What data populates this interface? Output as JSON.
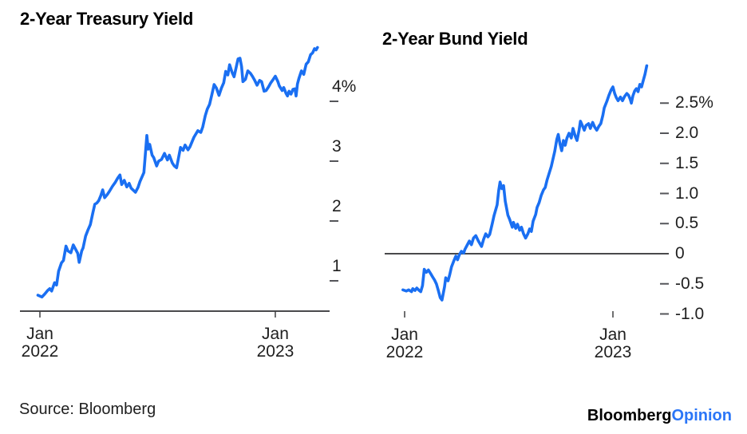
{
  "footer": {
    "source": "Source: Bloomberg",
    "logo_black": "Bloomberg",
    "logo_blue": "Opinion"
  },
  "colors": {
    "line_blue": "#1a6ff2",
    "axis_gray": "#4a4a4c",
    "dash_gray": "#55565a",
    "text_dark": "#1f1f1f",
    "logo_blue": "#2b76f7"
  },
  "chart_data": [
    {
      "type": "line",
      "title": "2-Year Treasury Yield",
      "x_unit": "months since Jan 2022",
      "xlim": [
        -0.2,
        14.3
      ],
      "ylim": [
        0.49,
        5.0
      ],
      "grid": false,
      "legend": null,
      "tick_side": "right",
      "bottom_axis": true,
      "zero_line": false,
      "x_ticks": [
        {
          "t": 0,
          "top": "Jan",
          "bottom": "2022"
        },
        {
          "t": 12,
          "top": "Jan",
          "bottom": "2023"
        }
      ],
      "y_ticks": [
        {
          "v": 1,
          "label": "1"
        },
        {
          "v": 2,
          "label": "2"
        },
        {
          "v": 3,
          "label": "3"
        },
        {
          "v": 4,
          "label": "4%"
        }
      ],
      "series": [
        {
          "name": "US 2-year Treasury yield (%)",
          "color": "#1a6ff2",
          "points": [
            [
              -0.1,
              0.76
            ],
            [
              0.1,
              0.73
            ],
            [
              0.25,
              0.78
            ],
            [
              0.4,
              0.84
            ],
            [
              0.5,
              0.87
            ],
            [
              0.6,
              0.83
            ],
            [
              0.75,
              0.97
            ],
            [
              0.85,
              0.93
            ],
            [
              0.95,
              1.16
            ],
            [
              1.1,
              1.3
            ],
            [
              1.2,
              1.34
            ],
            [
              1.33,
              1.58
            ],
            [
              1.43,
              1.5
            ],
            [
              1.58,
              1.47
            ],
            [
              1.7,
              1.6
            ],
            [
              1.8,
              1.54
            ],
            [
              1.93,
              1.46
            ],
            [
              2.0,
              1.31
            ],
            [
              2.13,
              1.5
            ],
            [
              2.2,
              1.55
            ],
            [
              2.33,
              1.75
            ],
            [
              2.45,
              1.85
            ],
            [
              2.57,
              1.94
            ],
            [
              2.7,
              2.14
            ],
            [
              2.8,
              2.28
            ],
            [
              2.9,
              2.3
            ],
            [
              3.0,
              2.34
            ],
            [
              3.1,
              2.42
            ],
            [
              3.2,
              2.52
            ],
            [
              3.3,
              2.39
            ],
            [
              3.43,
              2.44
            ],
            [
              3.55,
              2.5
            ],
            [
              3.7,
              2.58
            ],
            [
              3.85,
              2.65
            ],
            [
              3.97,
              2.72
            ],
            [
              4.08,
              2.77
            ],
            [
              4.17,
              2.61
            ],
            [
              4.3,
              2.68
            ],
            [
              4.43,
              2.57
            ],
            [
              4.55,
              2.63
            ],
            [
              4.65,
              2.55
            ],
            [
              4.87,
              2.48
            ],
            [
              5.0,
              2.56
            ],
            [
              5.1,
              2.66
            ],
            [
              5.3,
              2.81
            ],
            [
              5.45,
              3.43
            ],
            [
              5.52,
              3.2
            ],
            [
              5.6,
              3.28
            ],
            [
              5.72,
              3.1
            ],
            [
              5.8,
              3.06
            ],
            [
              5.95,
              2.92
            ],
            [
              6.05,
              3.0
            ],
            [
              6.2,
              3.03
            ],
            [
              6.35,
              3.13
            ],
            [
              6.5,
              3.02
            ],
            [
              6.6,
              3.1
            ],
            [
              6.75,
              2.97
            ],
            [
              6.85,
              2.92
            ],
            [
              6.97,
              2.89
            ],
            [
              7.17,
              3.23
            ],
            [
              7.3,
              3.18
            ],
            [
              7.4,
              3.27
            ],
            [
              7.55,
              3.19
            ],
            [
              7.65,
              3.24
            ],
            [
              7.75,
              3.32
            ],
            [
              7.85,
              3.4
            ],
            [
              8.05,
              3.51
            ],
            [
              8.2,
              3.48
            ],
            [
              8.3,
              3.57
            ],
            [
              8.43,
              3.76
            ],
            [
              8.53,
              3.87
            ],
            [
              8.65,
              3.95
            ],
            [
              8.77,
              4.12
            ],
            [
              8.88,
              4.28
            ],
            [
              9.0,
              4.22
            ],
            [
              9.13,
              4.1
            ],
            [
              9.25,
              4.22
            ],
            [
              9.37,
              4.31
            ],
            [
              9.47,
              4.5
            ],
            [
              9.58,
              4.44
            ],
            [
              9.67,
              4.61
            ],
            [
              9.8,
              4.48
            ],
            [
              9.9,
              4.41
            ],
            [
              10.0,
              4.56
            ],
            [
              10.1,
              4.71
            ],
            [
              10.2,
              4.72
            ],
            [
              10.28,
              4.58
            ],
            [
              10.35,
              4.33
            ],
            [
              10.48,
              4.37
            ],
            [
              10.6,
              4.51
            ],
            [
              10.73,
              4.47
            ],
            [
              10.83,
              4.42
            ],
            [
              10.95,
              4.35
            ],
            [
              11.07,
              4.27
            ],
            [
              11.2,
              4.35
            ],
            [
              11.3,
              4.33
            ],
            [
              11.43,
              4.17
            ],
            [
              11.53,
              4.18
            ],
            [
              11.65,
              4.24
            ],
            [
              11.77,
              4.31
            ],
            [
              11.9,
              4.37
            ],
            [
              12.0,
              4.42
            ],
            [
              12.13,
              4.33
            ],
            [
              12.2,
              4.26
            ],
            [
              12.35,
              4.18
            ],
            [
              12.43,
              4.23
            ],
            [
              12.55,
              4.13
            ],
            [
              12.62,
              4.09
            ],
            [
              12.7,
              4.17
            ],
            [
              12.8,
              4.12
            ],
            [
              12.9,
              4.2
            ],
            [
              13.0,
              4.21
            ],
            [
              13.06,
              4.09
            ],
            [
              13.13,
              4.29
            ],
            [
              13.2,
              4.38
            ],
            [
              13.33,
              4.51
            ],
            [
              13.45,
              4.45
            ],
            [
              13.57,
              4.62
            ],
            [
              13.68,
              4.66
            ],
            [
              13.8,
              4.78
            ],
            [
              13.9,
              4.81
            ],
            [
              14.0,
              4.88
            ],
            [
              14.08,
              4.86
            ],
            [
              14.15,
              4.9
            ]
          ]
        }
      ]
    },
    {
      "type": "line",
      "title": "2-Year Bund Yield",
      "x_unit": "months since Jan 2022",
      "xlim": [
        -0.2,
        14.1
      ],
      "ylim": [
        -1.15,
        3.3
      ],
      "grid": false,
      "legend": null,
      "tick_side": "right",
      "bottom_axis": false,
      "zero_line": true,
      "x_ticks": [
        {
          "t": 0,
          "top": "Jan",
          "bottom": "2022"
        },
        {
          "t": 12,
          "top": "Jan",
          "bottom": "2023"
        }
      ],
      "y_ticks": [
        {
          "v": -1.0,
          "label": "-1.0"
        },
        {
          "v": -0.5,
          "label": "-0.5"
        },
        {
          "v": 0,
          "label": "0"
        },
        {
          "v": 0.5,
          "label": "0.5"
        },
        {
          "v": 1.0,
          "label": "1.0"
        },
        {
          "v": 1.5,
          "label": "1.5"
        },
        {
          "v": 2.0,
          "label": "2.0"
        },
        {
          "v": 2.5,
          "label": "2.5%"
        }
      ],
      "series": [
        {
          "name": "German 2-year Bund yield (%)",
          "color": "#1a6ff2",
          "points": [
            [
              -0.1,
              -0.6
            ],
            [
              0.1,
              -0.62
            ],
            [
              0.23,
              -0.6
            ],
            [
              0.4,
              -0.63
            ],
            [
              0.47,
              -0.58
            ],
            [
              0.6,
              -0.61
            ],
            [
              0.7,
              -0.57
            ],
            [
              0.8,
              -0.6
            ],
            [
              0.93,
              -0.63
            ],
            [
              1.03,
              -0.53
            ],
            [
              1.13,
              -0.26
            ],
            [
              1.25,
              -0.31
            ],
            [
              1.37,
              -0.27
            ],
            [
              1.5,
              -0.33
            ],
            [
              1.6,
              -0.38
            ],
            [
              1.73,
              -0.44
            ],
            [
              1.83,
              -0.5
            ],
            [
              1.95,
              -0.62
            ],
            [
              2.05,
              -0.73
            ],
            [
              2.15,
              -0.77
            ],
            [
              2.3,
              -0.55
            ],
            [
              2.37,
              -0.4
            ],
            [
              2.5,
              -0.45
            ],
            [
              2.6,
              -0.35
            ],
            [
              2.7,
              -0.22
            ],
            [
              2.83,
              -0.12
            ],
            [
              2.95,
              -0.04
            ],
            [
              3.05,
              -0.1
            ],
            [
              3.15,
              -0.02
            ],
            [
              3.27,
              0.04
            ],
            [
              3.4,
              0.01
            ],
            [
              3.47,
              0.07
            ],
            [
              3.6,
              0.14
            ],
            [
              3.73,
              0.21
            ],
            [
              3.85,
              0.15
            ],
            [
              3.97,
              0.26
            ],
            [
              4.1,
              0.3
            ],
            [
              4.25,
              0.21
            ],
            [
              4.43,
              0.12
            ],
            [
              4.55,
              0.24
            ],
            [
              4.67,
              0.33
            ],
            [
              4.8,
              0.28
            ],
            [
              4.9,
              0.32
            ],
            [
              5.05,
              0.5
            ],
            [
              5.15,
              0.63
            ],
            [
              5.33,
              0.81
            ],
            [
              5.42,
              1.05
            ],
            [
              5.5,
              1.19
            ],
            [
              5.6,
              1.08
            ],
            [
              5.7,
              1.13
            ],
            [
              5.8,
              0.87
            ],
            [
              5.95,
              0.64
            ],
            [
              6.05,
              0.57
            ],
            [
              6.2,
              0.44
            ],
            [
              6.27,
              0.52
            ],
            [
              6.4,
              0.42
            ],
            [
              6.5,
              0.49
            ],
            [
              6.63,
              0.39
            ],
            [
              6.73,
              0.44
            ],
            [
              6.85,
              0.33
            ],
            [
              6.97,
              0.26
            ],
            [
              7.1,
              0.33
            ],
            [
              7.2,
              0.41
            ],
            [
              7.3,
              0.37
            ],
            [
              7.4,
              0.54
            ],
            [
              7.55,
              0.65
            ],
            [
              7.63,
              0.77
            ],
            [
              7.75,
              0.85
            ],
            [
              7.87,
              0.97
            ],
            [
              8.0,
              1.06
            ],
            [
              8.1,
              1.1
            ],
            [
              8.2,
              1.22
            ],
            [
              8.3,
              1.31
            ],
            [
              8.45,
              1.45
            ],
            [
              8.53,
              1.55
            ],
            [
              8.65,
              1.7
            ],
            [
              8.77,
              1.9
            ],
            [
              8.85,
              1.98
            ],
            [
              8.95,
              1.82
            ],
            [
              9.05,
              1.71
            ],
            [
              9.15,
              1.88
            ],
            [
              9.25,
              1.8
            ],
            [
              9.35,
              1.92
            ],
            [
              9.47,
              2.0
            ],
            [
              9.6,
              1.92
            ],
            [
              9.7,
              2.08
            ],
            [
              9.83,
              1.95
            ],
            [
              9.93,
              1.88
            ],
            [
              10.05,
              2.05
            ],
            [
              10.13,
              2.2
            ],
            [
              10.25,
              2.12
            ],
            [
              10.35,
              2.05
            ],
            [
              10.45,
              2.13
            ],
            [
              10.6,
              2.16
            ],
            [
              10.7,
              2.08
            ],
            [
              10.83,
              2.18
            ],
            [
              10.95,
              2.1
            ],
            [
              11.07,
              2.05
            ],
            [
              11.2,
              2.12
            ],
            [
              11.3,
              2.16
            ],
            [
              11.42,
              2.3
            ],
            [
              11.5,
              2.42
            ],
            [
              11.65,
              2.53
            ],
            [
              11.77,
              2.63
            ],
            [
              11.9,
              2.72
            ],
            [
              12.0,
              2.77
            ],
            [
              12.1,
              2.66
            ],
            [
              12.2,
              2.59
            ],
            [
              12.3,
              2.54
            ],
            [
              12.43,
              2.6
            ],
            [
              12.55,
              2.54
            ],
            [
              12.67,
              2.61
            ],
            [
              12.8,
              2.66
            ],
            [
              12.9,
              2.63
            ],
            [
              13.0,
              2.56
            ],
            [
              13.06,
              2.5
            ],
            [
              13.15,
              2.62
            ],
            [
              13.25,
              2.7
            ],
            [
              13.35,
              2.74
            ],
            [
              13.45,
              2.69
            ],
            [
              13.55,
              2.81
            ],
            [
              13.65,
              2.77
            ],
            [
              13.75,
              2.88
            ],
            [
              13.85,
              2.98
            ],
            [
              13.95,
              3.12
            ]
          ]
        }
      ]
    }
  ]
}
